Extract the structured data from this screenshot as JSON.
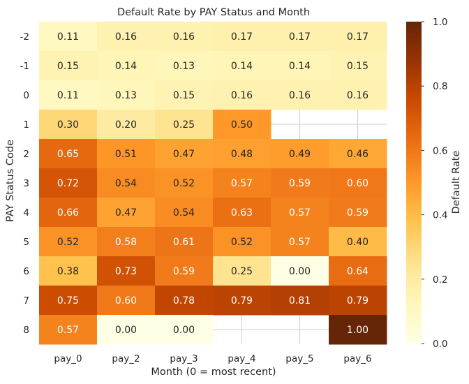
{
  "chart_data": {
    "type": "heatmap",
    "title": "Default Rate by PAY Status and Month",
    "xlabel": "Month (0 = most recent)",
    "ylabel": "PAY Status Code",
    "x": [
      "pay_0",
      "pay_2",
      "pay_3",
      "pay_4",
      "pay_5",
      "pay_6"
    ],
    "y": [
      "-2",
      "-1",
      "0",
      "1",
      "2",
      "3",
      "4",
      "5",
      "6",
      "7",
      "8"
    ],
    "values": [
      [
        0.11,
        0.16,
        0.16,
        0.17,
        0.17,
        0.17
      ],
      [
        0.15,
        0.14,
        0.13,
        0.14,
        0.14,
        0.15
      ],
      [
        0.11,
        0.13,
        0.15,
        0.16,
        0.16,
        0.16
      ],
      [
        0.3,
        0.2,
        0.25,
        0.5,
        null,
        null
      ],
      [
        0.65,
        0.51,
        0.47,
        0.48,
        0.49,
        0.46
      ],
      [
        0.72,
        0.54,
        0.52,
        0.57,
        0.59,
        0.6
      ],
      [
        0.66,
        0.47,
        0.54,
        0.63,
        0.57,
        0.59
      ],
      [
        0.52,
        0.58,
        0.61,
        0.52,
        0.57,
        0.4
      ],
      [
        0.38,
        0.73,
        0.59,
        0.25,
        0.0,
        0.64
      ],
      [
        0.75,
        0.6,
        0.78,
        0.79,
        0.81,
        0.79
      ],
      [
        0.57,
        0.0,
        0.0,
        null,
        null,
        1.0
      ]
    ],
    "colorbar": {
      "label": "Default Rate",
      "range": [
        0.0,
        1.0
      ],
      "ticks": [
        "0.0",
        "0.2",
        "0.4",
        "0.6",
        "0.8",
        "1.0"
      ]
    },
    "colormap": "YlOrBr",
    "grid": true
  }
}
